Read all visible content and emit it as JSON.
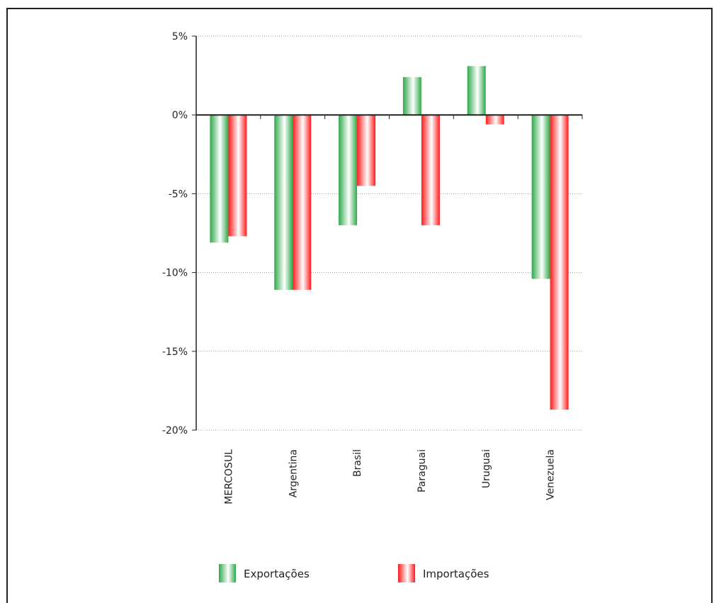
{
  "chart_data": {
    "type": "bar",
    "categories": [
      "MERCOSUL",
      "Argentina",
      "Brasil",
      "Paraguai",
      "Uruguai",
      "Venezuela"
    ],
    "series": [
      {
        "name": "Exportações",
        "values": [
          -8.1,
          -11.1,
          -7.0,
          2.4,
          3.1,
          -10.4
        ],
        "color": "#33b54a"
      },
      {
        "name": "Importações",
        "values": [
          -7.7,
          -11.1,
          -4.5,
          -7.0,
          -0.6,
          -18.7
        ],
        "color": "#ff2020"
      }
    ],
    "y_ticks": [
      "5%",
      "0%",
      "-5%",
      "-10%",
      "-15%",
      "-20%"
    ],
    "y_tick_values": [
      5,
      0,
      -5,
      -10,
      -15,
      -20
    ],
    "ylim": [
      -20,
      5
    ],
    "grid": true,
    "legend_position": "bottom"
  }
}
